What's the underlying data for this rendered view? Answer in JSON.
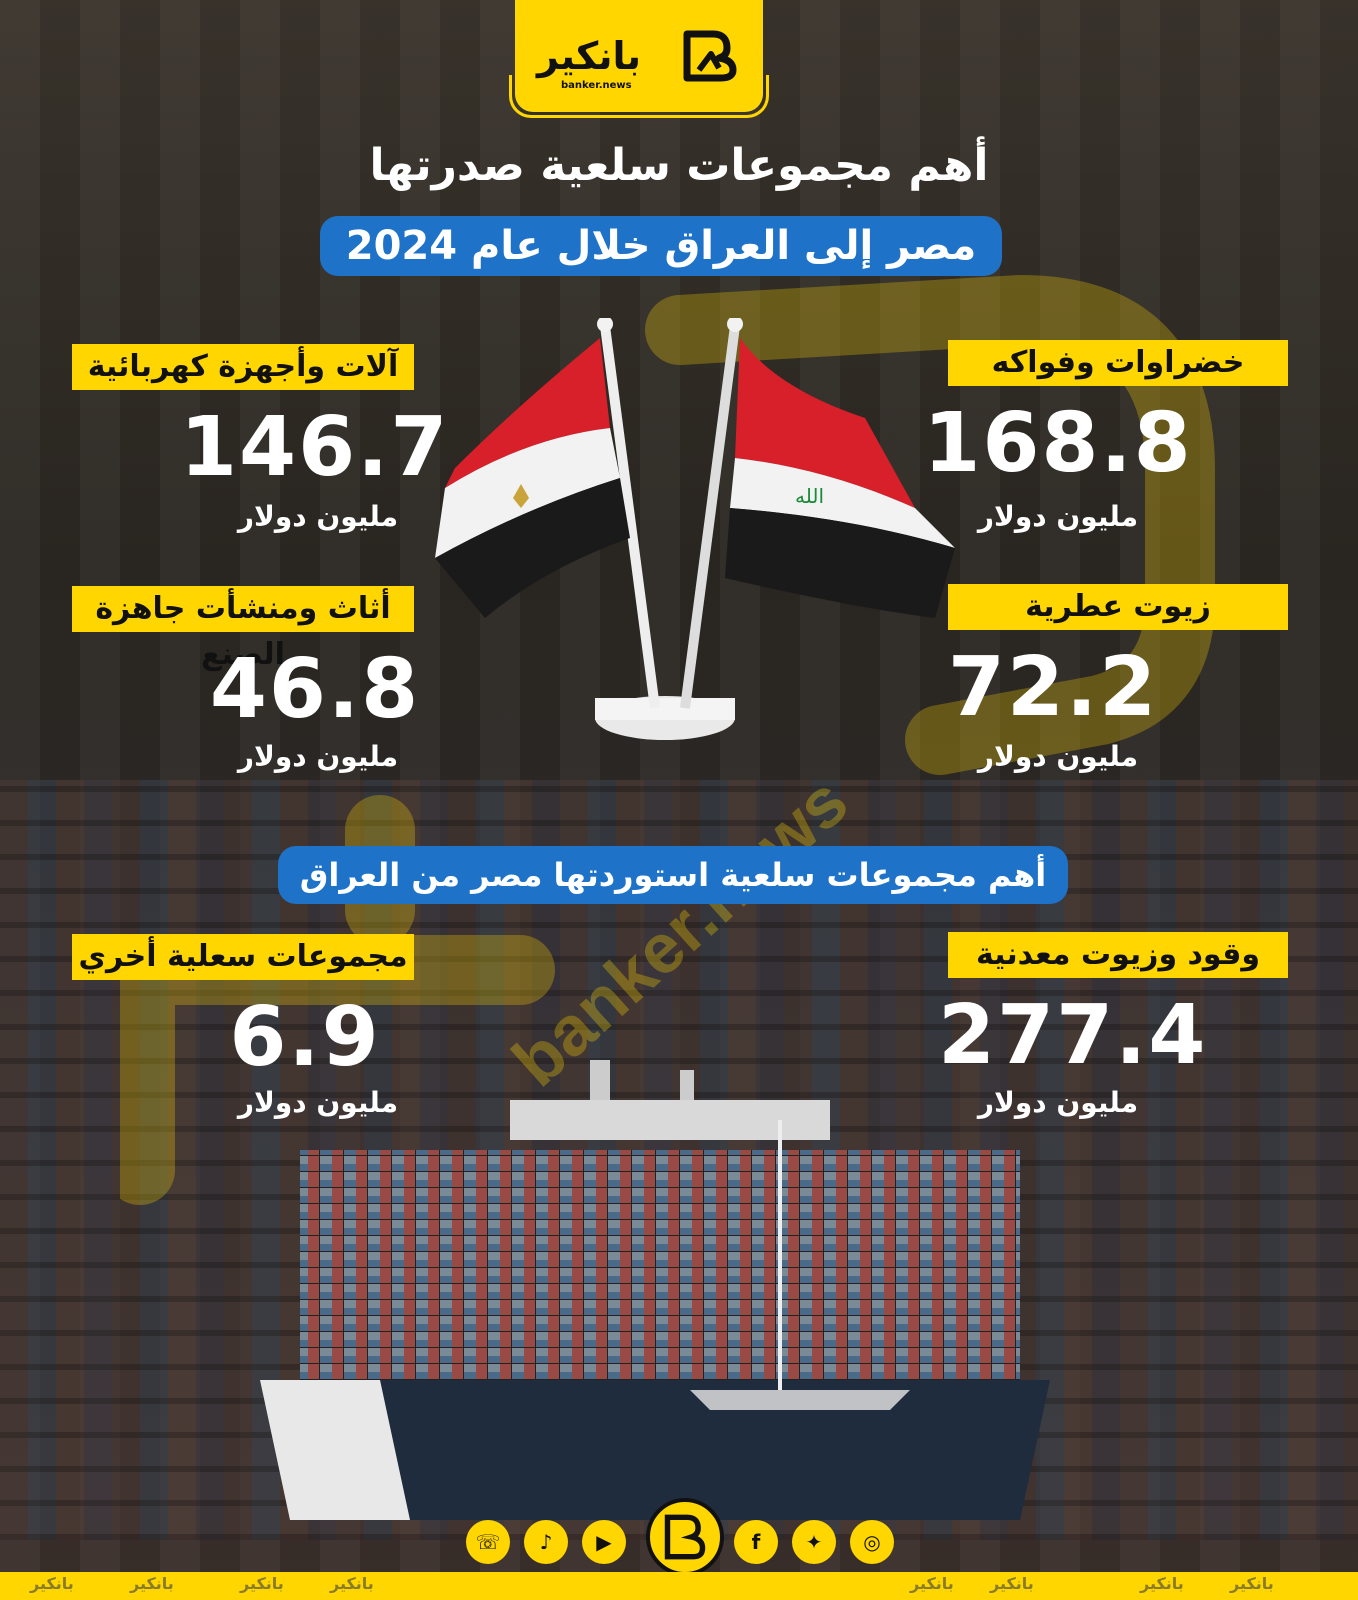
{
  "brand": {
    "name": "بانكير",
    "site": "banker.news",
    "color": "#ffd600"
  },
  "title_line1": "أهم مجموعات سلعية صدرتها",
  "title_line2": "مصر إلى العراق خلال عام 2024",
  "exports": [
    {
      "label": "خضراوات وفواكه",
      "value": "168.8",
      "unit": "مليون دولار"
    },
    {
      "label": "آلات وأجهزة كهربائية",
      "value": "146.7",
      "unit": "مليون دولار"
    },
    {
      "label": "زيوت عطرية",
      "value": "72.2",
      "unit": "مليون دولار"
    },
    {
      "label": "أثاث ومنشأت جاهزة الصنع",
      "value": "46.8",
      "unit": "مليون دولار"
    }
  ],
  "imports_title": "أهم مجموعات سلعية استوردتها مصر من العراق",
  "imports": [
    {
      "label": "وقود وزيوت معدنية",
      "value": "277.4",
      "unit": "مليون دولار"
    },
    {
      "label": "مجموعات سعلية أخري",
      "value": "6.9",
      "unit": "مليون دولار"
    }
  ],
  "watermark_text": "banker.news",
  "social_icons": [
    "whatsapp-icon",
    "tiktok-icon",
    "youtube-icon",
    "facebook-icon",
    "twitter-icon",
    "instagram-icon"
  ],
  "accent_blue": "#1e73c8"
}
